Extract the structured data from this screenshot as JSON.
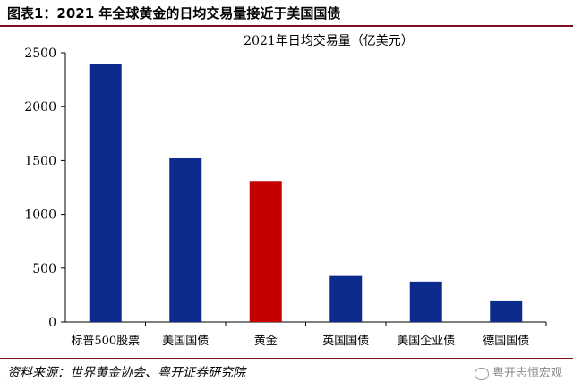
{
  "figure_title": "图表1：2021 年全球黄金的日均交易量接近于美国国债",
  "source": "资料来源：世界黄金协会、粤开证券研究院",
  "watermark": "粤开志恒宏观",
  "chart_data": {
    "type": "bar",
    "title": "2021年日均交易量（亿美元）",
    "categories": [
      "标普500股票",
      "美国国债",
      "黄金",
      "英国国债",
      "美国企业债",
      "德国国债"
    ],
    "values": [
      2400,
      1520,
      1310,
      435,
      375,
      200
    ],
    "colors": [
      "#0b2c8c",
      "#0b2c8c",
      "#c40000",
      "#0b2c8c",
      "#0b2c8c",
      "#0b2c8c"
    ],
    "ylim": [
      0,
      2500
    ],
    "yticks": [
      "0",
      "500",
      "1000",
      "1500",
      "2000",
      "2500"
    ],
    "grid": false,
    "legend": "none"
  }
}
